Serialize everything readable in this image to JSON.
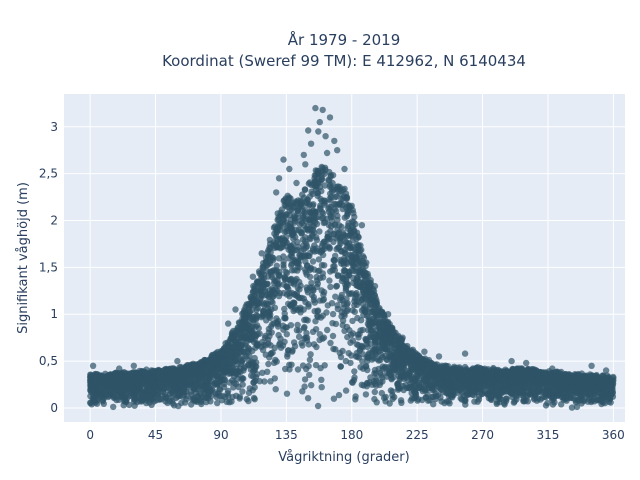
{
  "chart_data": {
    "type": "scatter",
    "title_line1": "År 1979 - 2019",
    "title_line2": "Koordinat (Sweref 99 TM): E 412962, N 6140434",
    "xlabel": "Vågriktning (grader)",
    "ylabel": "Signifikant våghöjd (m)",
    "xlim": [
      -18,
      368
    ],
    "ylim": [
      -0.15,
      3.35
    ],
    "x_ticks": [
      0,
      45,
      90,
      135,
      180,
      225,
      270,
      315,
      360
    ],
    "x_tick_labels": [
      "0",
      "45",
      "90",
      "135",
      "180",
      "225",
      "270",
      "315",
      "360"
    ],
    "y_ticks": [
      0,
      0.5,
      1,
      1.5,
      2,
      2.5,
      3
    ],
    "y_tick_labels": [
      "0",
      "0,5",
      "1",
      "1,5",
      "2",
      "2,5",
      "3"
    ],
    "grid": true,
    "colors": {
      "marker": "#2f5468",
      "plot_bg": "#e5ecf6",
      "grid": "#ffffff",
      "text": "#2a3f5f"
    },
    "envelope": {
      "x": [
        0,
        10,
        20,
        30,
        45,
        60,
        75,
        90,
        100,
        110,
        120,
        125,
        130,
        135,
        140,
        145,
        150,
        155,
        160,
        165,
        170,
        175,
        180,
        185,
        190,
        195,
        200,
        210,
        220,
        230,
        240,
        255,
        270,
        285,
        300,
        315,
        330,
        345,
        360
      ],
      "y": [
        0.35,
        0.35,
        0.38,
        0.38,
        0.4,
        0.42,
        0.48,
        0.6,
        0.85,
        1.2,
        1.6,
        1.9,
        2.1,
        2.3,
        2.2,
        2.3,
        2.4,
        2.55,
        2.6,
        2.5,
        2.45,
        2.35,
        2.2,
        1.8,
        1.5,
        1.25,
        1.05,
        0.8,
        0.62,
        0.52,
        0.45,
        0.42,
        0.42,
        0.4,
        0.42,
        0.38,
        0.36,
        0.35,
        0.32
      ]
    },
    "outliers": [
      [
        155,
        3.2
      ],
      [
        160,
        3.18
      ],
      [
        150,
        2.96
      ],
      [
        158,
        3.05
      ],
      [
        162,
        2.9
      ],
      [
        165,
        3.1
      ],
      [
        168,
        2.85
      ],
      [
        133,
        2.65
      ],
      [
        137,
        2.55
      ],
      [
        130,
        2.45
      ],
      [
        142,
        2.4
      ],
      [
        147,
        2.7
      ],
      [
        152,
        2.82
      ],
      [
        170,
        2.75
      ],
      [
        175,
        2.55
      ],
      [
        157,
        2.95
      ],
      [
        148,
        2.6
      ],
      [
        163,
        2.72
      ],
      [
        128,
        2.3
      ],
      [
        118,
        1.65
      ],
      [
        112,
        1.4
      ],
      [
        190,
        1.55
      ],
      [
        196,
        1.3
      ],
      [
        205,
        1.0
      ],
      [
        215,
        0.75
      ],
      [
        230,
        0.6
      ],
      [
        258,
        0.58
      ],
      [
        290,
        0.5
      ],
      [
        300,
        0.48
      ],
      [
        345,
        0.45
      ],
      [
        355,
        0.4
      ],
      [
        95,
        0.9
      ],
      [
        100,
        1.05
      ],
      [
        85,
        0.55
      ],
      [
        60,
        0.5
      ],
      [
        30,
        0.45
      ],
      [
        2,
        0.45
      ],
      [
        20,
        0.42
      ],
      [
        318,
        0.42
      ],
      [
        240,
        0.55
      ],
      [
        222,
        0.62
      ],
      [
        187,
        1.95
      ]
    ]
  }
}
